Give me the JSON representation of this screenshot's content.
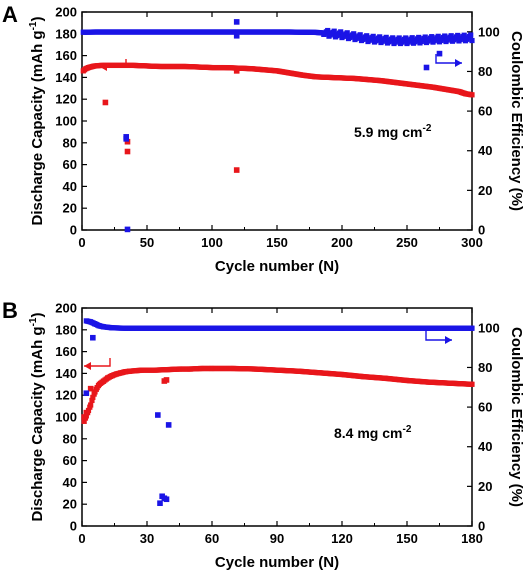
{
  "chart_data": [
    {
      "panel": "A",
      "type": "scatter",
      "xlabel": "Cycle number (N)",
      "ylabel_left": "Discharge Capacity (mAh g",
      "ylabel_left_sup": "-1",
      "ylabel_left_close": ")",
      "ylabel_right": "Coulombic Efficiency (%)",
      "xlim": [
        0,
        300
      ],
      "ylim_left": [
        0,
        200
      ],
      "ylim_right": [
        0,
        110
      ],
      "xticks": [
        "0",
        "50",
        "100",
        "150",
        "200",
        "250",
        "300"
      ],
      "yticks_left": [
        "0",
        "20",
        "40",
        "60",
        "80",
        "100",
        "120",
        "140",
        "160",
        "180",
        "200"
      ],
      "yticks_right": [
        "0",
        "20",
        "40",
        "60",
        "80",
        "100"
      ],
      "loading_text": "5.9 mg cm",
      "loading_sup": "-2",
      "series_colors": {
        "capacity": "#e8161b",
        "efficiency": "#1a14e6"
      },
      "capacity_points": [
        [
          1,
          146
        ],
        [
          3,
          148
        ],
        [
          5,
          149
        ],
        [
          8,
          150
        ],
        [
          10,
          150.5
        ],
        [
          15,
          151
        ],
        [
          20,
          151
        ],
        [
          25,
          151
        ],
        [
          30,
          151
        ],
        [
          40,
          151
        ],
        [
          50,
          150.5
        ],
        [
          60,
          150
        ],
        [
          70,
          150
        ],
        [
          80,
          150
        ],
        [
          90,
          149.5
        ],
        [
          100,
          149
        ],
        [
          110,
          149
        ],
        [
          120,
          148.5
        ],
        [
          130,
          148
        ],
        [
          140,
          147
        ],
        [
          150,
          146
        ],
        [
          160,
          144
        ],
        [
          170,
          142
        ],
        [
          180,
          140.5
        ],
        [
          190,
          140
        ],
        [
          200,
          139.5
        ],
        [
          210,
          139
        ],
        [
          220,
          138
        ],
        [
          230,
          137
        ],
        [
          240,
          135.5
        ],
        [
          250,
          134
        ],
        [
          260,
          132.5
        ],
        [
          270,
          131
        ],
        [
          280,
          129
        ],
        [
          290,
          127
        ],
        [
          295,
          125
        ],
        [
          300,
          124
        ]
      ],
      "capacity_outliers": [
        [
          18,
          117
        ],
        [
          35,
          72
        ],
        [
          35,
          81
        ],
        [
          119,
          55
        ],
        [
          119,
          146
        ]
      ],
      "efficiency_points": [
        [
          1,
          99.8
        ],
        [
          10,
          99.9
        ],
        [
          20,
          99.9
        ],
        [
          30,
          99.9
        ],
        [
          40,
          99.9
        ],
        [
          60,
          99.9
        ],
        [
          80,
          99.9
        ],
        [
          100,
          99.9
        ],
        [
          120,
          99.9
        ],
        [
          140,
          99.9
        ],
        [
          160,
          99.9
        ],
        [
          180,
          99.7
        ],
        [
          190,
          99.2
        ],
        [
          200,
          98.5
        ],
        [
          210,
          97.5
        ],
        [
          220,
          96.5
        ],
        [
          230,
          96
        ],
        [
          240,
          95.5
        ],
        [
          250,
          95.5
        ],
        [
          260,
          95.8
        ],
        [
          270,
          96.2
        ],
        [
          280,
          96.5
        ],
        [
          290,
          96.8
        ],
        [
          300,
          97
        ]
      ],
      "efficiency_outliers": [
        [
          34,
          47
        ],
        [
          34,
          46
        ],
        [
          35,
          0.3
        ],
        [
          119,
          105
        ],
        [
          119,
          98
        ],
        [
          265,
          82
        ],
        [
          275,
          89
        ]
      ]
    },
    {
      "panel": "B",
      "type": "scatter",
      "xlabel": "Cycle number (N)",
      "ylabel_left": "Discharge Capacity (mAh g",
      "ylabel_left_sup": "-1",
      "ylabel_left_close": ")",
      "ylabel_right": "Coulombic Efficiency (%)",
      "xlim": [
        0,
        180
      ],
      "ylim_left": [
        0,
        200
      ],
      "ylim_right": [
        0,
        110
      ],
      "xticks": [
        "0",
        "30",
        "60",
        "90",
        "120",
        "150",
        "180"
      ],
      "yticks_left": [
        "0",
        "20",
        "40",
        "60",
        "80",
        "100",
        "120",
        "140",
        "160",
        "180",
        "200"
      ],
      "yticks_right": [
        "0",
        "20",
        "40",
        "60",
        "80",
        "100"
      ],
      "loading_text": "8.4 mg cm",
      "loading_sup": "-2",
      "series_colors": {
        "capacity": "#e8161b",
        "efficiency": "#1a14e6"
      },
      "capacity_points": [
        [
          1,
          96
        ],
        [
          2,
          101
        ],
        [
          3,
          106
        ],
        [
          4,
          111
        ],
        [
          5,
          118
        ],
        [
          6,
          123
        ],
        [
          7,
          127
        ],
        [
          8,
          130
        ],
        [
          10,
          133
        ],
        [
          12,
          136
        ],
        [
          14,
          138
        ],
        [
          16,
          139.5
        ],
        [
          18,
          140.5
        ],
        [
          20,
          141.5
        ],
        [
          22,
          142
        ],
        [
          25,
          142.5
        ],
        [
          28,
          143
        ],
        [
          31,
          143
        ],
        [
          34,
          143
        ],
        [
          40,
          143.5
        ],
        [
          45,
          144
        ],
        [
          50,
          144
        ],
        [
          55,
          144.5
        ],
        [
          60,
          144.5
        ],
        [
          70,
          144.5
        ],
        [
          80,
          144
        ],
        [
          90,
          143
        ],
        [
          100,
          142
        ],
        [
          110,
          140.5
        ],
        [
          120,
          139
        ],
        [
          130,
          137
        ],
        [
          140,
          135.5
        ],
        [
          150,
          133.5
        ],
        [
          160,
          132
        ],
        [
          170,
          131
        ],
        [
          180,
          130
        ]
      ],
      "capacity_outliers": [
        [
          1,
          100
        ],
        [
          2,
          104
        ],
        [
          4,
          126
        ],
        [
          38,
          133
        ],
        [
          39,
          134
        ]
      ],
      "efficiency_points": [
        [
          2,
          103.5
        ],
        [
          4,
          103
        ],
        [
          6,
          102
        ],
        [
          8,
          101
        ],
        [
          10,
          100.5
        ],
        [
          14,
          100
        ],
        [
          20,
          99.8
        ],
        [
          30,
          99.8
        ],
        [
          34,
          99.8
        ],
        [
          42,
          99.8
        ],
        [
          60,
          99.8
        ],
        [
          80,
          99.8
        ],
        [
          100,
          99.8
        ],
        [
          120,
          99.8
        ],
        [
          140,
          99.8
        ],
        [
          160,
          99.8
        ],
        [
          180,
          99.8
        ]
      ],
      "efficiency_outliers": [
        [
          2,
          67
        ],
        [
          5,
          95
        ],
        [
          35,
          56
        ],
        [
          36,
          11.5
        ],
        [
          37,
          15
        ],
        [
          38,
          14
        ],
        [
          39,
          13.5
        ],
        [
          40,
          51
        ]
      ]
    }
  ]
}
